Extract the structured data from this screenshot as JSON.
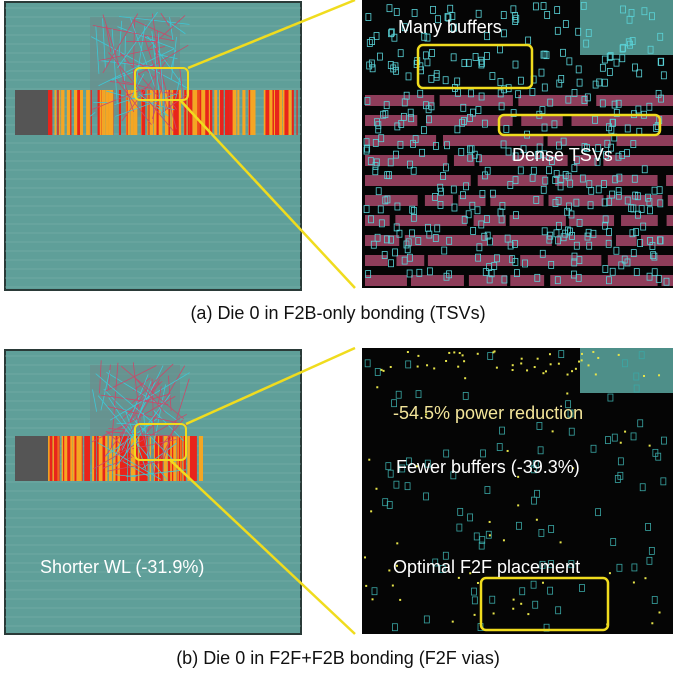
{
  "panels": [
    {
      "caption": "(a) Die 0 in F2B-only bonding (TSVs)",
      "zoom_labels": [
        "Many buffers",
        "Dense TSVs"
      ]
    },
    {
      "caption": "(b) Die 0 in F2F+F2B bonding (F2F vias)",
      "overview_label": "Shorter WL (-31.9%)",
      "zoom_labels": [
        "-54.5% power reduction",
        "Fewer buffers (-39.3%)",
        "Optimal F2F placement"
      ]
    }
  ]
}
